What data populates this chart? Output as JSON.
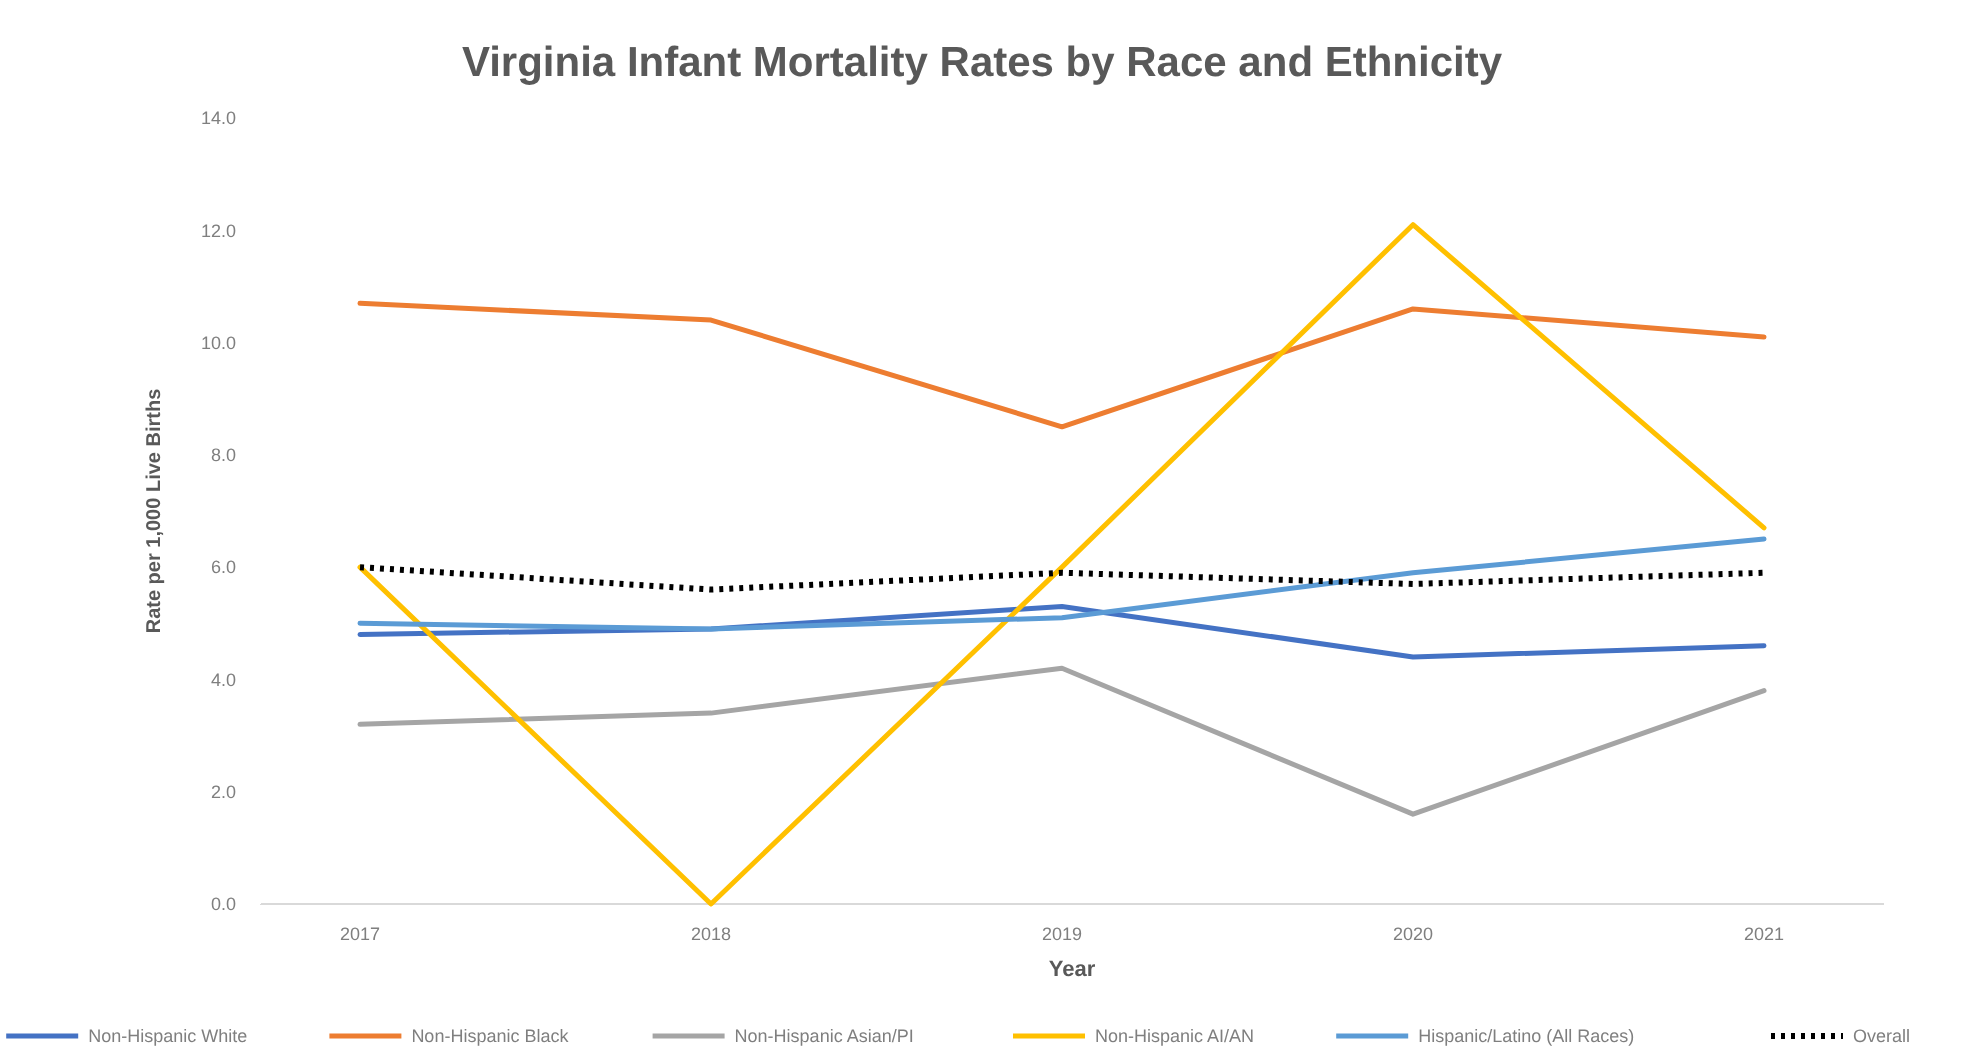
{
  "chart_data": {
    "type": "line",
    "title": "Virginia Infant Mortality Rates by Race and Ethnicity",
    "xlabel": "Year",
    "ylabel": "Rate per 1,000 Live Births",
    "categories": [
      "2017",
      "2018",
      "2019",
      "2020",
      "2021"
    ],
    "series": [
      {
        "name": "Non-Hispanic White",
        "color": "#4472c4",
        "values": [
          4.8,
          4.9,
          5.3,
          4.4,
          4.6
        ]
      },
      {
        "name": "Non-Hispanic Black",
        "color": "#ed7d31",
        "values": [
          10.7,
          10.4,
          8.5,
          10.6,
          10.1
        ]
      },
      {
        "name": "Non-Hispanic Asian/PI",
        "color": "#a5a5a5",
        "values": [
          3.2,
          3.4,
          4.2,
          1.6,
          3.8
        ]
      },
      {
        "name": "Non-Hispanic AI/AN",
        "color": "#ffc000",
        "values": [
          6.0,
          0.0,
          6.0,
          12.1,
          6.7
        ]
      },
      {
        "name": "Hispanic/Latino (All Races)",
        "color": "#5b9bd5",
        "values": [
          5.0,
          4.9,
          5.1,
          5.9,
          6.5
        ]
      },
      {
        "name": "Overall",
        "color": "#000000",
        "values": [
          6.0,
          5.6,
          5.9,
          5.7,
          5.9
        ],
        "line_style": "dotted"
      }
    ],
    "ylim": [
      0,
      14
    ],
    "yticks": [
      {
        "value": 0,
        "label": "0.0"
      },
      {
        "value": 2,
        "label": "2.0"
      },
      {
        "value": 4,
        "label": "4.0"
      },
      {
        "value": 6,
        "label": "6.0"
      },
      {
        "value": 8,
        "label": "8.0"
      },
      {
        "value": 10,
        "label": "10.0"
      },
      {
        "value": 12,
        "label": "12.0"
      },
      {
        "value": 14,
        "label": "14.0"
      }
    ],
    "legend": "bottom",
    "marker": "none"
  }
}
